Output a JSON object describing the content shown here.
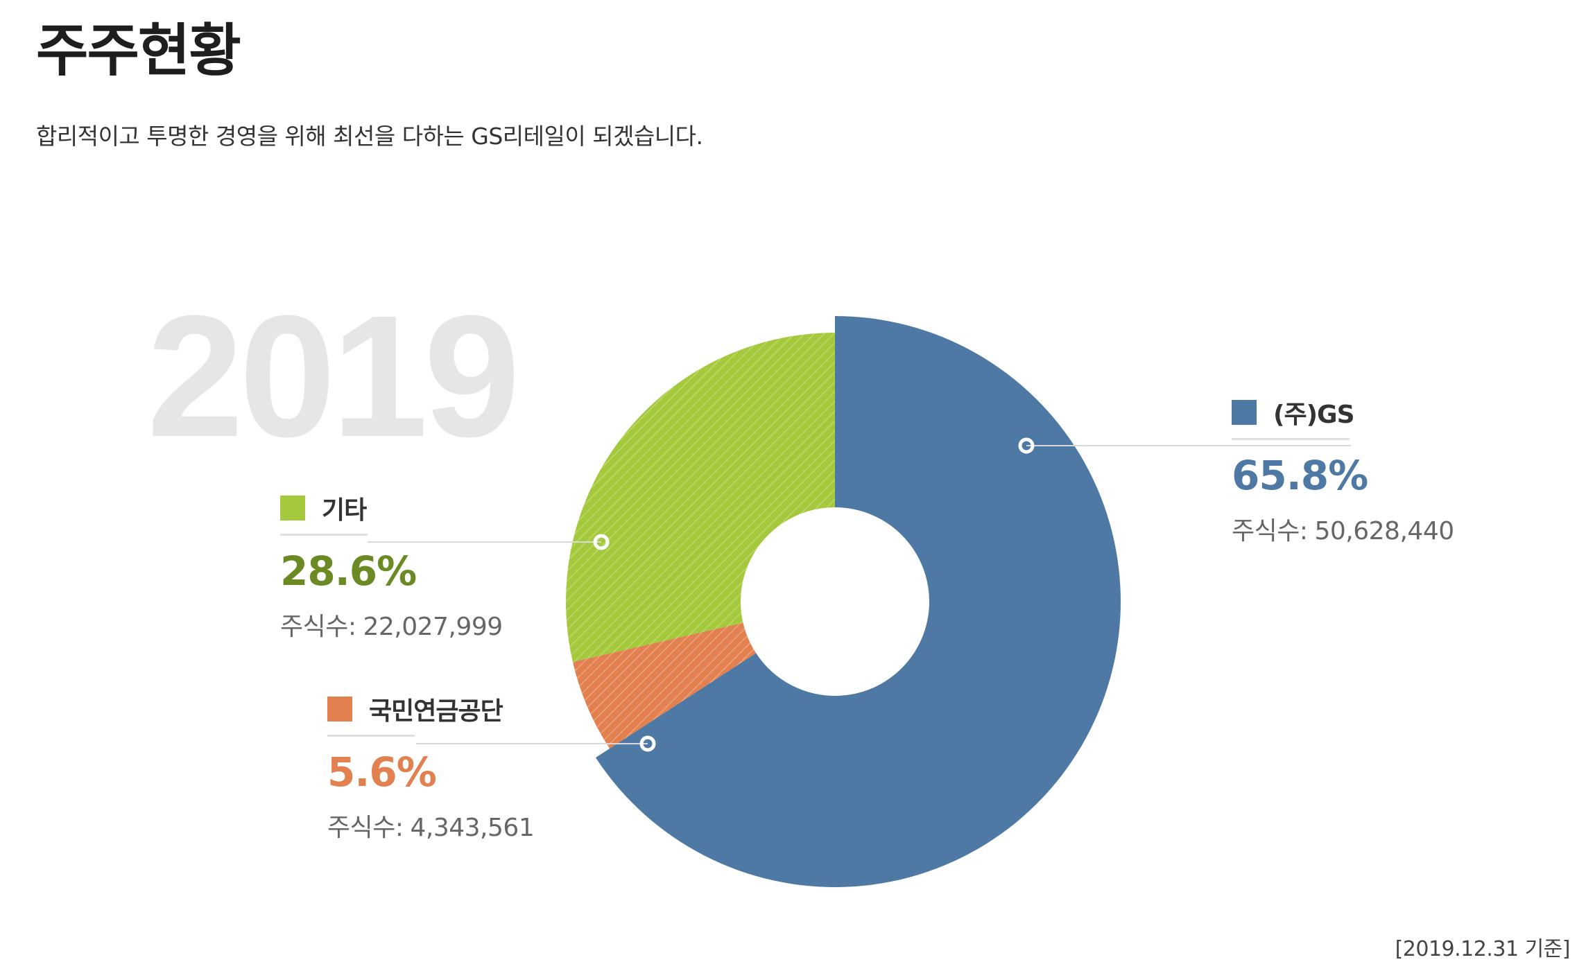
{
  "header": {
    "title": "주주현황",
    "subtitle": "합리적이고 투명한 경영을 위해 최선을 다하는 GS리테일이 되겠습니다."
  },
  "year_label": "2019",
  "shares_label": "주식수:",
  "as_of": "[2019.12.31 기준]",
  "chart_data": {
    "type": "pie",
    "style": "donut",
    "slices": [
      {
        "label": "(주)GS",
        "percent": 65.8,
        "percent_text": "65.8%",
        "shares": "50,628,440",
        "color": "#4e79a4"
      },
      {
        "label": "국민연금공단",
        "percent": 5.6,
        "percent_text": "5.6%",
        "shares": "4,343,561",
        "color": "#e2804f"
      },
      {
        "label": "기타",
        "percent": 28.6,
        "percent_text": "28.6%",
        "shares": "22,027,999",
        "color": "#a4c93c"
      }
    ],
    "text_colors": {
      "(주)GS": "#4e79a4",
      "국민연금공단": "#e2804f",
      "기타": "#6b8a24"
    }
  }
}
